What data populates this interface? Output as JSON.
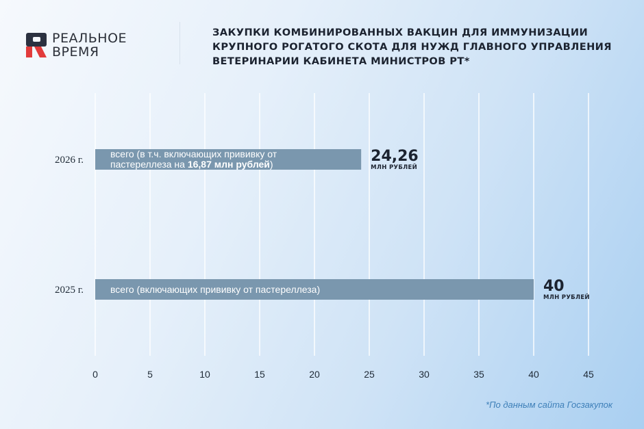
{
  "brand": {
    "logo_line1": "РЕАЛЬНОЕ",
    "logo_line2": "ВРЕМЯ",
    "logo_colors": {
      "dark": "#2b3140",
      "red": "#e23b3b"
    }
  },
  "header": {
    "title": "ЗАКУПКИ КОМБИНИРОВАННЫХ ВАКЦИН ДЛЯ ИММУНИЗАЦИИ КРУПНОГО РОГАТОГО СКОТА ДЛЯ НУЖД ГЛАВНОГО УПРАВЛЕНИЯ ВЕТЕРИНАРИИ КАБИНЕТА МИНИСТРОВ РТ*"
  },
  "footnote": "*По данным сайта Госзакупок",
  "chart_data": {
    "type": "bar",
    "orientation": "horizontal",
    "categories": [
      "2026 г.",
      "2025 г."
    ],
    "values": [
      24.26,
      40
    ],
    "value_labels": [
      "24,26",
      "40"
    ],
    "unit_label": "млн рублей",
    "bar_notes": [
      {
        "before": "всего (в т.ч. включающих прививку от",
        "line2_before": "пастереллеза на ",
        "bold": "16,87 млн рублей",
        "after": ")"
      },
      {
        "before": "всего (включающих прививку от пастереллеза)",
        "line2_before": "",
        "bold": "",
        "after": ""
      }
    ],
    "x_ticks": [
      0,
      5,
      10,
      15,
      20,
      25,
      30,
      35,
      40,
      45
    ],
    "xlim": [
      0,
      45
    ],
    "grid": true,
    "bar_color": "#7a97ae",
    "grid_color": "#ffffff"
  }
}
